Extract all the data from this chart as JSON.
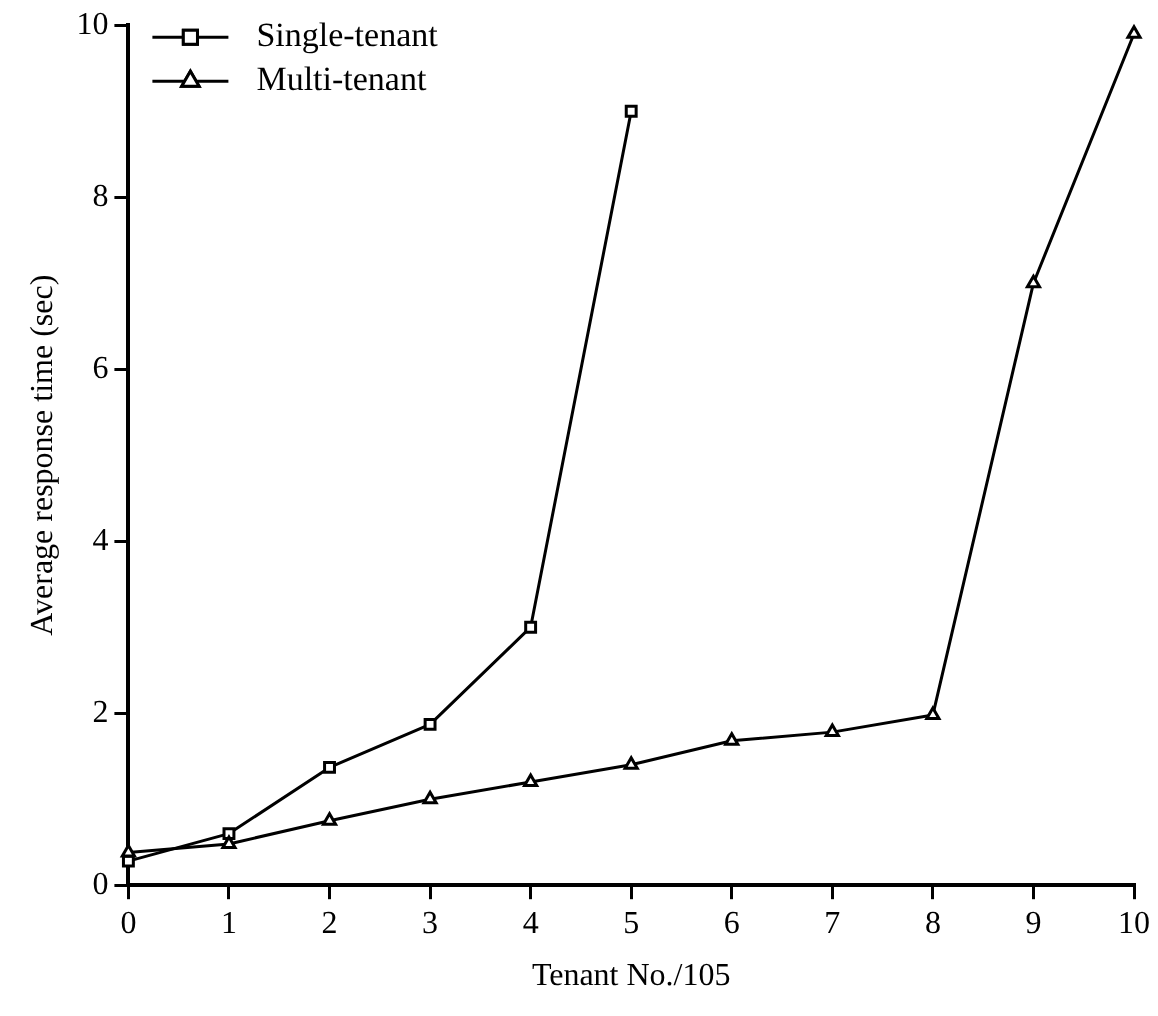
{
  "chart_data": {
    "type": "line",
    "xlabel": "Tenant No./105",
    "ylabel": "Average response time (sec)",
    "xlim": [
      0,
      10
    ],
    "xticks": [
      0,
      1,
      2,
      3,
      4,
      5,
      6,
      7,
      8,
      9,
      10
    ],
    "ylim": [
      0,
      10
    ],
    "yticks": [
      0,
      2,
      4,
      6,
      8,
      10
    ],
    "grid": false,
    "legend": "top left",
    "line_style": "solid",
    "series": [
      {
        "name": "Single-tenant",
        "color": "#000000",
        "marker": "square",
        "x": [
          0,
          1,
          2,
          3,
          4,
          5
        ],
        "values": [
          0.28,
          0.6,
          1.37,
          1.87,
          3.0,
          9.0
        ]
      },
      {
        "name": "Multi-tenant",
        "color": "#000000",
        "marker": "triangle",
        "x": [
          0,
          1,
          2,
          3,
          4,
          5,
          6,
          7,
          8,
          9,
          10
        ],
        "values": [
          0.38,
          0.48,
          0.75,
          1.0,
          1.2,
          1.4,
          1.68,
          1.78,
          1.98,
          7.0,
          9.9
        ]
      }
    ]
  }
}
